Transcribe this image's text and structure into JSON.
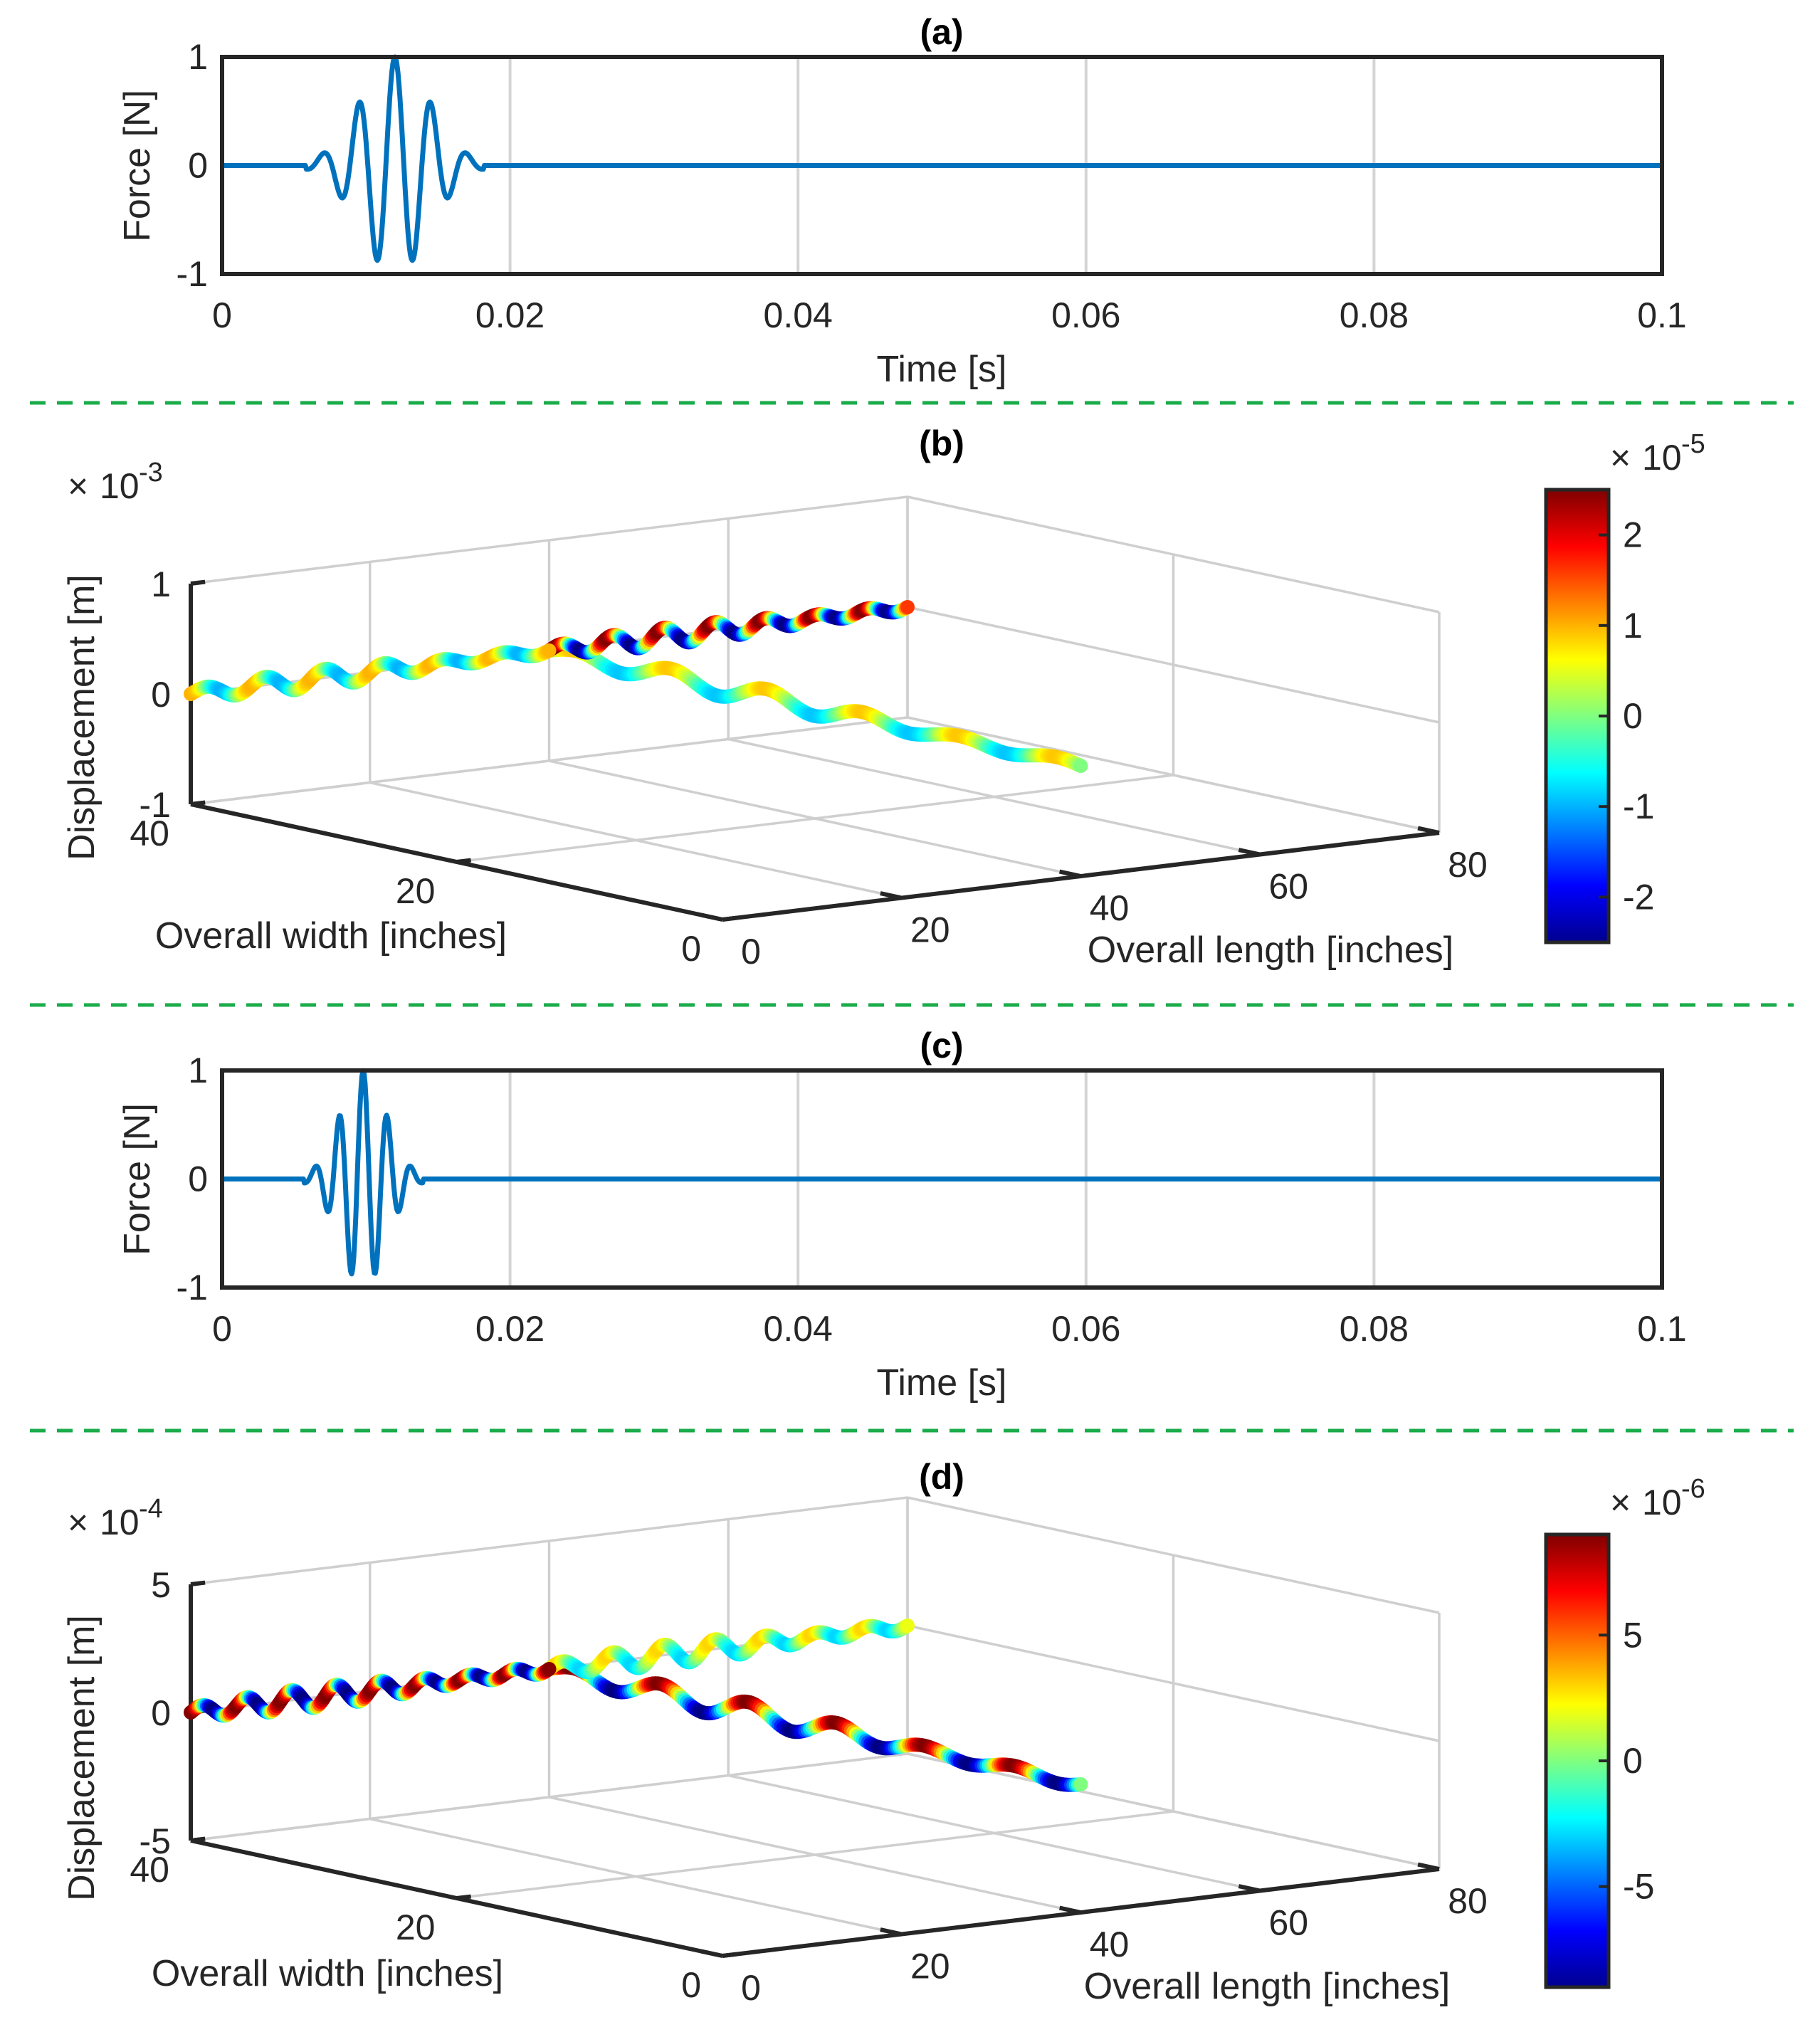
{
  "chart_data": [
    {
      "panel": "a",
      "type": "line",
      "title": "(a)",
      "xlabel": "Time [s]",
      "ylabel": "Force [N]",
      "xlim": [
        0,
        0.1
      ],
      "ylim": [
        -1,
        1
      ],
      "xticks": [
        "0",
        "0.02",
        "0.04",
        "0.06",
        "0.08",
        "0.1"
      ],
      "yticks": [
        "-1",
        "0",
        "1"
      ],
      "color": "#0072bd",
      "series": [
        {
          "name": "force",
          "kind": "toneburst",
          "center_s": 0.012,
          "frequency_hz": 400,
          "duration_s": 0.01,
          "peak": 1.0,
          "min": -1.0
        }
      ]
    },
    {
      "panel": "b",
      "type": "line3d",
      "title": "(b)",
      "xlabel": "Overall length [inches]",
      "ylabel": "Overall width [inches]",
      "zlabel": "Displacement [m]",
      "z_multiplier": "10",
      "z_exponent": "-3",
      "xticks": [
        "0",
        "20",
        "40",
        "60",
        "80"
      ],
      "yticks": [
        "0",
        "20",
        "40"
      ],
      "zticks": [
        "-1",
        "0",
        "1"
      ],
      "xlim": [
        0,
        80
      ],
      "ylim": [
        0,
        40
      ],
      "zlim": [
        -1,
        1
      ],
      "colorbar": {
        "multiplier": "10",
        "exponent": "-5",
        "ticks": [
          "-2",
          "-1",
          "0",
          "1",
          "2"
        ],
        "range": [
          -2.5,
          2.5
        ],
        "colormap": "jet"
      },
      "series": [
        {
          "name": "branch-along-width",
          "from": [
            40,
            40,
            0
          ],
          "to": [
            40,
            0,
            0
          ],
          "max_color": 0.9,
          "waves": 5.5
        },
        {
          "name": "branch-along-length-positive",
          "from": [
            40,
            40,
            0
          ],
          "to": [
            80,
            40,
            0
          ],
          "max_color": 2.5,
          "waves": 7
        },
        {
          "name": "branch-along-length-negative",
          "from": [
            0,
            40,
            0
          ],
          "to": [
            40,
            40,
            0
          ],
          "max_color": 1.0,
          "waves": 6
        }
      ]
    },
    {
      "panel": "c",
      "type": "line",
      "title": "(c)",
      "xlabel": "Time [s]",
      "ylabel": "Force [N]",
      "xlim": [
        0,
        0.1
      ],
      "ylim": [
        -1,
        1
      ],
      "xticks": [
        "0",
        "0.02",
        "0.04",
        "0.06",
        "0.08",
        "0.1"
      ],
      "yticks": [
        "-1",
        "0",
        "1"
      ],
      "color": "#0072bd",
      "series": [
        {
          "name": "force",
          "kind": "toneburst",
          "center_s": 0.0098,
          "frequency_hz": 600,
          "duration_s": 0.0067,
          "peak": 1.0,
          "min": -1.0
        }
      ]
    },
    {
      "panel": "d",
      "type": "line3d",
      "title": "(d)",
      "xlabel": "Overall length [inches]",
      "ylabel": "Overall width [inches]",
      "zlabel": "Displacement [m]",
      "z_multiplier": "10",
      "z_exponent": "-4",
      "xticks": [
        "0",
        "20",
        "40",
        "60",
        "80"
      ],
      "yticks": [
        "0",
        "20",
        "40"
      ],
      "zticks": [
        "-5",
        "0",
        "5"
      ],
      "xlim": [
        0,
        80
      ],
      "ylim": [
        0,
        40
      ],
      "zlim": [
        -5,
        5
      ],
      "colorbar": {
        "multiplier": "10",
        "exponent": "-6",
        "ticks": [
          "-5",
          "0",
          "5"
        ],
        "range": [
          -9,
          9
        ],
        "colormap": "jet"
      },
      "series": [
        {
          "name": "branch-along-width",
          "from": [
            40,
            40,
            0
          ],
          "to": [
            40,
            0,
            0
          ],
          "max_color": 9,
          "waves": 6
        },
        {
          "name": "branch-along-length-positive",
          "from": [
            40,
            40,
            0
          ],
          "to": [
            80,
            40,
            0
          ],
          "max_color": 3,
          "waves": 7
        },
        {
          "name": "branch-along-length-negative",
          "from": [
            0,
            40,
            0
          ],
          "to": [
            40,
            40,
            0
          ],
          "max_color": 9,
          "waves": 8
        }
      ]
    }
  ]
}
